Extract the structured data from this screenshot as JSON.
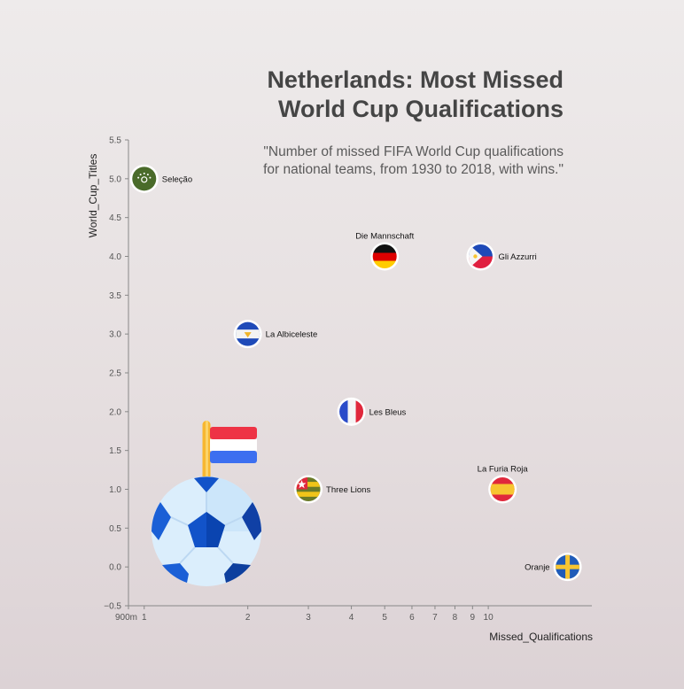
{
  "chart_data": {
    "type": "scatter",
    "title_line1": "Netherlands: Most Missed",
    "title_line2": "World Cup Qualifications",
    "subtitle_line1": "\"Number of missed FIFA World Cup qualifications",
    "subtitle_line2": "for national teams, from 1930 to 2018, with wins.\"",
    "xlabel": "Missed_Qualifications",
    "ylabel": "World_Cup_Titles",
    "x_scale": "log",
    "xlim": [
      0.9,
      20
    ],
    "ylim": [
      -0.5,
      5.5
    ],
    "x_ticks": [
      {
        "value": 0.9,
        "label": "900m"
      },
      {
        "value": 1,
        "label": "1"
      },
      {
        "value": 2,
        "label": "2"
      },
      {
        "value": 3,
        "label": "3"
      },
      {
        "value": 4,
        "label": "4"
      },
      {
        "value": 5,
        "label": "5"
      },
      {
        "value": 6,
        "label": "6"
      },
      {
        "value": 7,
        "label": "7"
      },
      {
        "value": 8,
        "label": "8"
      },
      {
        "value": 9,
        "label": "9"
      },
      {
        "value": 10,
        "label": "10"
      }
    ],
    "y_ticks": [
      {
        "value": -0.5,
        "label": "−0.5"
      },
      {
        "value": 0,
        "label": "0.0"
      },
      {
        "value": 0.5,
        "label": "0.5"
      },
      {
        "value": 1,
        "label": "1.0"
      },
      {
        "value": 1.5,
        "label": "1.5"
      },
      {
        "value": 2,
        "label": "2.0"
      },
      {
        "value": 2.5,
        "label": "2.5"
      },
      {
        "value": 3,
        "label": "3.0"
      },
      {
        "value": 3.5,
        "label": "3.5"
      },
      {
        "value": 4,
        "label": "4.0"
      },
      {
        "value": 4.5,
        "label": "4.5"
      },
      {
        "value": 5,
        "label": "5.0"
      },
      {
        "value": 5.5,
        "label": "5.5"
      }
    ],
    "grid": false,
    "points": [
      {
        "label": "Seleção",
        "x": 1,
        "y": 5,
        "flag": "brazil",
        "label_pos": "right"
      },
      {
        "label": "Die Mannschaft",
        "x": 5,
        "y": 4,
        "flag": "germany",
        "label_pos": "top"
      },
      {
        "label": "Gli Azzurri",
        "x": 9.5,
        "y": 4,
        "flag": "italy",
        "label_pos": "right"
      },
      {
        "label": "La Albiceleste",
        "x": 2,
        "y": 3,
        "flag": "argentina",
        "label_pos": "right"
      },
      {
        "label": "Les Bleus",
        "x": 4,
        "y": 2,
        "flag": "france",
        "label_pos": "right"
      },
      {
        "label": "Three Lions",
        "x": 3,
        "y": 1,
        "flag": "england",
        "label_pos": "right"
      },
      {
        "label": "La Furia Roja",
        "x": 11,
        "y": 1,
        "flag": "spain",
        "label_pos": "top"
      },
      {
        "label": "Oranje",
        "x": 17,
        "y": 0,
        "flag": "netherlands",
        "label_pos": "left"
      }
    ],
    "decoration": "soccer-ball-with-netherlands-flag-icon"
  }
}
